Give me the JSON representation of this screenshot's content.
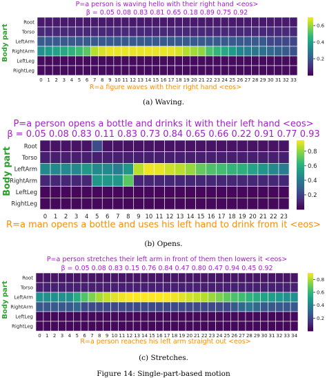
{
  "chart_data": [
    {
      "type": "heatmap",
      "title": "P=a person is waving hello with their right hand <eos>",
      "beta_line": "β = 0.05 0.08 0.83 0.81 0.65 0.18 0.89 0.75 0.92",
      "xlabel": "R=a figure waves with their right hand <eos>",
      "ylabel": "Body part",
      "rows": [
        "Root",
        "Torso",
        "LeftArm",
        "RightArm",
        "LeftLeg",
        "RightLeg"
      ],
      "x": [
        "0",
        "1",
        "2",
        "3",
        "4",
        "5",
        "6",
        "7",
        "8",
        "9",
        "10",
        "11",
        "12",
        "13",
        "14",
        "15",
        "16",
        "17",
        "18",
        "19",
        "20",
        "21",
        "22",
        "23",
        "24",
        "25",
        "26",
        "27",
        "28",
        "29",
        "30",
        "31",
        "32",
        "33"
      ],
      "colorbar_ticks": [
        0.2,
        0.4,
        0.6
      ],
      "zlim": [
        0.0,
        0.7
      ],
      "values": [
        [
          0.05,
          0.05,
          0.05,
          0.05,
          0.05,
          0.05,
          0.05,
          0.05,
          0.05,
          0.05,
          0.05,
          0.05,
          0.05,
          0.05,
          0.05,
          0.05,
          0.05,
          0.05,
          0.05,
          0.05,
          0.05,
          0.05,
          0.05,
          0.05,
          0.05,
          0.05,
          0.05,
          0.05,
          0.05,
          0.05,
          0.05,
          0.05,
          0.05,
          0.05
        ],
        [
          0.08,
          0.08,
          0.08,
          0.08,
          0.08,
          0.08,
          0.08,
          0.08,
          0.08,
          0.08,
          0.08,
          0.08,
          0.08,
          0.08,
          0.08,
          0.08,
          0.08,
          0.08,
          0.08,
          0.08,
          0.08,
          0.08,
          0.08,
          0.08,
          0.08,
          0.08,
          0.08,
          0.08,
          0.08,
          0.08,
          0.08,
          0.08,
          0.08,
          0.08
        ],
        [
          0.2,
          0.2,
          0.2,
          0.2,
          0.2,
          0.2,
          0.2,
          0.2,
          0.2,
          0.2,
          0.2,
          0.2,
          0.2,
          0.2,
          0.2,
          0.2,
          0.2,
          0.2,
          0.2,
          0.2,
          0.2,
          0.2,
          0.2,
          0.2,
          0.2,
          0.2,
          0.2,
          0.2,
          0.2,
          0.2,
          0.15,
          0.15,
          0.15,
          0.15
        ],
        [
          0.35,
          0.38,
          0.4,
          0.42,
          0.45,
          0.48,
          0.52,
          0.62,
          0.66,
          0.68,
          0.68,
          0.68,
          0.68,
          0.68,
          0.68,
          0.68,
          0.68,
          0.68,
          0.66,
          0.62,
          0.6,
          0.58,
          0.5,
          0.46,
          0.42,
          0.38,
          0.32,
          0.3,
          0.28,
          0.26,
          0.24,
          0.22,
          0.2,
          0.18
        ],
        [
          0.02,
          0.02,
          0.02,
          0.02,
          0.02,
          0.02,
          0.02,
          0.02,
          0.02,
          0.02,
          0.02,
          0.02,
          0.02,
          0.02,
          0.02,
          0.02,
          0.02,
          0.02,
          0.02,
          0.02,
          0.02,
          0.02,
          0.02,
          0.02,
          0.02,
          0.02,
          0.02,
          0.02,
          0.02,
          0.02,
          0.02,
          0.02,
          0.02,
          0.02
        ],
        [
          0.02,
          0.02,
          0.02,
          0.02,
          0.02,
          0.02,
          0.02,
          0.02,
          0.02,
          0.02,
          0.02,
          0.02,
          0.02,
          0.02,
          0.02,
          0.02,
          0.02,
          0.02,
          0.02,
          0.02,
          0.02,
          0.02,
          0.02,
          0.02,
          0.02,
          0.02,
          0.02,
          0.02,
          0.02,
          0.02,
          0.02,
          0.02,
          0.02,
          0.02
        ]
      ],
      "caption": "(a) Waving."
    },
    {
      "type": "heatmap",
      "title": "P=a person opens a bottle and drinks it with their left hand <eos>",
      "beta_line": "β = 0.05 0.08 0.83 0.11 0.83 0.73 0.84 0.65 0.66 0.22 0.91 0.77 0.93",
      "xlabel": "R=a man opens a bottle and uses his left hand to drink from it <eos>",
      "ylabel": "Body part",
      "rows": [
        "Root",
        "Torso",
        "LeftArm",
        "RightArm",
        "LeftLeg",
        "RightLeg"
      ],
      "x": [
        "0",
        "1",
        "2",
        "3",
        "4",
        "5",
        "6",
        "7",
        "8",
        "9",
        "10",
        "11",
        "12",
        "13",
        "14",
        "15",
        "16",
        "17",
        "18",
        "19",
        "20",
        "21",
        "22",
        "23"
      ],
      "colorbar_ticks": [
        0.2,
        0.4,
        0.6,
        0.8
      ],
      "zlim": [
        0.0,
        0.95
      ],
      "values": [
        [
          0.05,
          0.05,
          0.05,
          0.05,
          0.05,
          0.22,
          0.05,
          0.05,
          0.05,
          0.05,
          0.05,
          0.05,
          0.05,
          0.05,
          0.05,
          0.05,
          0.05,
          0.05,
          0.05,
          0.05,
          0.05,
          0.05,
          0.05,
          0.05
        ],
        [
          0.08,
          0.08,
          0.08,
          0.08,
          0.08,
          0.08,
          0.08,
          0.08,
          0.08,
          0.08,
          0.08,
          0.08,
          0.08,
          0.08,
          0.08,
          0.08,
          0.08,
          0.08,
          0.08,
          0.08,
          0.08,
          0.08,
          0.08,
          0.08
        ],
        [
          0.45,
          0.45,
          0.45,
          0.45,
          0.5,
          0.45,
          0.45,
          0.4,
          0.5,
          0.85,
          0.93,
          0.92,
          0.88,
          0.85,
          0.8,
          0.72,
          0.68,
          0.66,
          0.62,
          0.6,
          0.55,
          0.5,
          0.45,
          0.4
        ],
        [
          0.1,
          0.1,
          0.1,
          0.1,
          0.1,
          0.5,
          0.5,
          0.5,
          0.7,
          0.1,
          0.1,
          0.1,
          0.1,
          0.1,
          0.1,
          0.1,
          0.1,
          0.1,
          0.1,
          0.1,
          0.1,
          0.1,
          0.1,
          0.1
        ],
        [
          0.02,
          0.02,
          0.02,
          0.02,
          0.02,
          0.02,
          0.02,
          0.02,
          0.02,
          0.02,
          0.02,
          0.02,
          0.02,
          0.02,
          0.02,
          0.02,
          0.02,
          0.02,
          0.02,
          0.02,
          0.02,
          0.02,
          0.02,
          0.02
        ],
        [
          0.02,
          0.02,
          0.02,
          0.02,
          0.02,
          0.02,
          0.02,
          0.02,
          0.02,
          0.02,
          0.02,
          0.02,
          0.02,
          0.02,
          0.02,
          0.02,
          0.02,
          0.02,
          0.02,
          0.02,
          0.02,
          0.02,
          0.02,
          0.02
        ]
      ],
      "caption": "(b) Opens."
    },
    {
      "type": "heatmap",
      "title": "P=a person stretches their left arm in front of them then lowers it <eos>",
      "beta_line": "β = 0.05 0.08 0.83 0.15 0.76 0.84 0.47 0.80 0.47 0.94 0.45 0.92",
      "xlabel": "R=a person reaches his left arm straight out <eos>",
      "ylabel": "Body part",
      "rows": [
        "Root",
        "Torso",
        "LeftArm",
        "RightArm",
        "LeftLeg",
        "RightLeg"
      ],
      "x": [
        "0",
        "1",
        "2",
        "3",
        "4",
        "5",
        "6",
        "7",
        "8",
        "9",
        "10",
        "11",
        "12",
        "13",
        "14",
        "15",
        "16",
        "17",
        "18",
        "19",
        "20",
        "21",
        "22",
        "23",
        "24",
        "25",
        "26",
        "27",
        "28",
        "29",
        "30",
        "31",
        "32",
        "33",
        "34"
      ],
      "colorbar_ticks": [
        0.2,
        0.4,
        0.6,
        0.8
      ],
      "zlim": [
        0.0,
        0.9
      ],
      "values": [
        [
          0.05,
          0.05,
          0.05,
          0.05,
          0.05,
          0.05,
          0.05,
          0.05,
          0.05,
          0.05,
          0.05,
          0.05,
          0.05,
          0.05,
          0.05,
          0.05,
          0.05,
          0.05,
          0.05,
          0.05,
          0.05,
          0.05,
          0.05,
          0.05,
          0.05,
          0.05,
          0.05,
          0.05,
          0.05,
          0.05,
          0.05,
          0.05,
          0.05,
          0.05,
          0.05
        ],
        [
          0.08,
          0.08,
          0.08,
          0.08,
          0.08,
          0.08,
          0.08,
          0.08,
          0.08,
          0.08,
          0.08,
          0.08,
          0.08,
          0.08,
          0.08,
          0.08,
          0.08,
          0.08,
          0.08,
          0.08,
          0.08,
          0.08,
          0.08,
          0.08,
          0.08,
          0.08,
          0.08,
          0.08,
          0.08,
          0.08,
          0.08,
          0.08,
          0.08,
          0.08,
          0.08
        ],
        [
          0.45,
          0.45,
          0.45,
          0.45,
          0.45,
          0.55,
          0.65,
          0.72,
          0.78,
          0.82,
          0.86,
          0.88,
          0.9,
          0.9,
          0.9,
          0.9,
          0.9,
          0.9,
          0.88,
          0.86,
          0.84,
          0.82,
          0.8,
          0.76,
          0.72,
          0.68,
          0.64,
          0.62,
          0.58,
          0.55,
          0.52,
          0.5,
          0.48,
          0.45,
          0.45
        ],
        [
          0.25,
          0.25,
          0.25,
          0.25,
          0.25,
          0.3,
          0.2,
          0.2,
          0.2,
          0.2,
          0.2,
          0.2,
          0.2,
          0.2,
          0.2,
          0.2,
          0.2,
          0.2,
          0.2,
          0.2,
          0.2,
          0.2,
          0.2,
          0.2,
          0.2,
          0.2,
          0.25,
          0.3,
          0.35,
          0.3,
          0.25,
          0.25,
          0.25,
          0.25,
          0.25
        ],
        [
          0.02,
          0.02,
          0.02,
          0.02,
          0.02,
          0.02,
          0.02,
          0.02,
          0.02,
          0.02,
          0.02,
          0.02,
          0.02,
          0.02,
          0.02,
          0.02,
          0.02,
          0.02,
          0.02,
          0.02,
          0.02,
          0.02,
          0.02,
          0.02,
          0.02,
          0.02,
          0.02,
          0.02,
          0.02,
          0.02,
          0.02,
          0.02,
          0.02,
          0.02,
          0.02
        ],
        [
          0.02,
          0.02,
          0.02,
          0.02,
          0.02,
          0.02,
          0.02,
          0.02,
          0.02,
          0.02,
          0.02,
          0.02,
          0.02,
          0.02,
          0.02,
          0.02,
          0.02,
          0.02,
          0.02,
          0.02,
          0.02,
          0.02,
          0.02,
          0.02,
          0.02,
          0.02,
          0.02,
          0.02,
          0.02,
          0.02,
          0.02,
          0.02,
          0.02,
          0.02,
          0.02
        ]
      ],
      "caption": "(c) Stretches."
    }
  ],
  "figure_caption": "Figure 14: Single-part-based motion",
  "colors": {
    "prompt": "#a020c8",
    "response": "#ff8c00",
    "axis_label": "#2ca02c",
    "grid": "#ffffff"
  }
}
